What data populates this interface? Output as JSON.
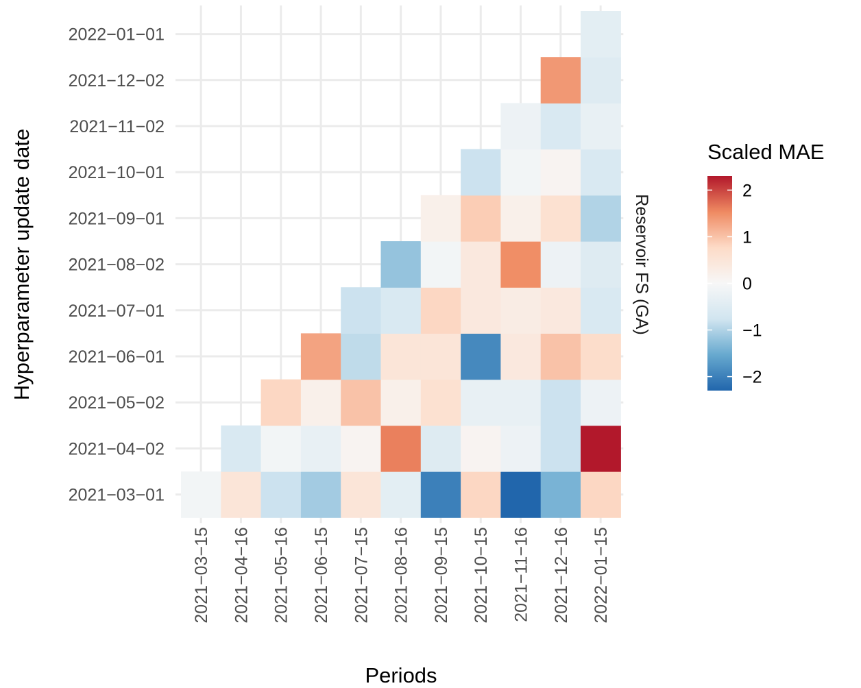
{
  "chart_data": {
    "type": "heatmap",
    "title": "",
    "xlabel": "Periods",
    "ylabel": "Hyperparameter update date",
    "facet_label": "Reservoir FS (GA)",
    "x_categories": [
      "2021−03−15",
      "2021−04−16",
      "2021−05−16",
      "2021−06−15",
      "2021−07−15",
      "2021−08−16",
      "2021−09−15",
      "2021−10−15",
      "2021−11−16",
      "2021−12−16",
      "2022−01−15"
    ],
    "y_categories": [
      "2021−03−01",
      "2021−04−02",
      "2021−05−02",
      "2021−06−01",
      "2021−07−01",
      "2021−08−02",
      "2021−09−01",
      "2021−10−01",
      "2021−11−02",
      "2021−12−02",
      "2022−01−01"
    ],
    "values": [
      [
        -0.1,
        0.5,
        -0.8,
        -1.1,
        0.5,
        -0.4,
        -2.0,
        0.8,
        -2.3,
        -1.4,
        0.8
      ],
      [
        null,
        -0.6,
        -0.1,
        -0.3,
        0.1,
        1.6,
        -0.5,
        0.1,
        -0.2,
        -0.8,
        2.3
      ],
      [
        null,
        null,
        0.8,
        0.2,
        1.0,
        0.2,
        0.6,
        -0.3,
        -0.3,
        -0.8,
        -0.2
      ],
      [
        null,
        null,
        null,
        1.3,
        -0.9,
        0.5,
        0.5,
        -1.9,
        0.4,
        1.0,
        0.7
      ],
      [
        null,
        null,
        null,
        null,
        -0.8,
        -0.6,
        0.8,
        0.4,
        0.3,
        0.4,
        -0.6
      ],
      [
        null,
        null,
        null,
        null,
        null,
        -1.2,
        -0.1,
        0.4,
        1.5,
        -0.2,
        -0.5
      ],
      [
        null,
        null,
        null,
        null,
        null,
        null,
        0.2,
        0.9,
        0.2,
        0.6,
        -1.0
      ],
      [
        null,
        null,
        null,
        null,
        null,
        null,
        null,
        -0.8,
        -0.1,
        0.1,
        -0.6
      ],
      [
        null,
        null,
        null,
        null,
        null,
        null,
        null,
        null,
        -0.2,
        -0.6,
        -0.3
      ],
      [
        null,
        null,
        null,
        null,
        null,
        null,
        null,
        null,
        null,
        1.4,
        -0.5
      ],
      [
        null,
        null,
        null,
        null,
        null,
        null,
        null,
        null,
        null,
        null,
        -0.4
      ]
    ],
    "legend": {
      "title": "Scaled MAE",
      "ticks": [
        2,
        1,
        0,
        -1,
        -2
      ],
      "tick_labels": [
        "2",
        "1",
        "0",
        "−1",
        "−2"
      ],
      "range": [
        -2.3,
        2.3
      ],
      "colors": [
        "#2166ac",
        "#67a9cf",
        "#d1e5f0",
        "#f7f7f7",
        "#fddbc7",
        "#ef8a62",
        "#b2182b"
      ]
    },
    "grid": true
  }
}
